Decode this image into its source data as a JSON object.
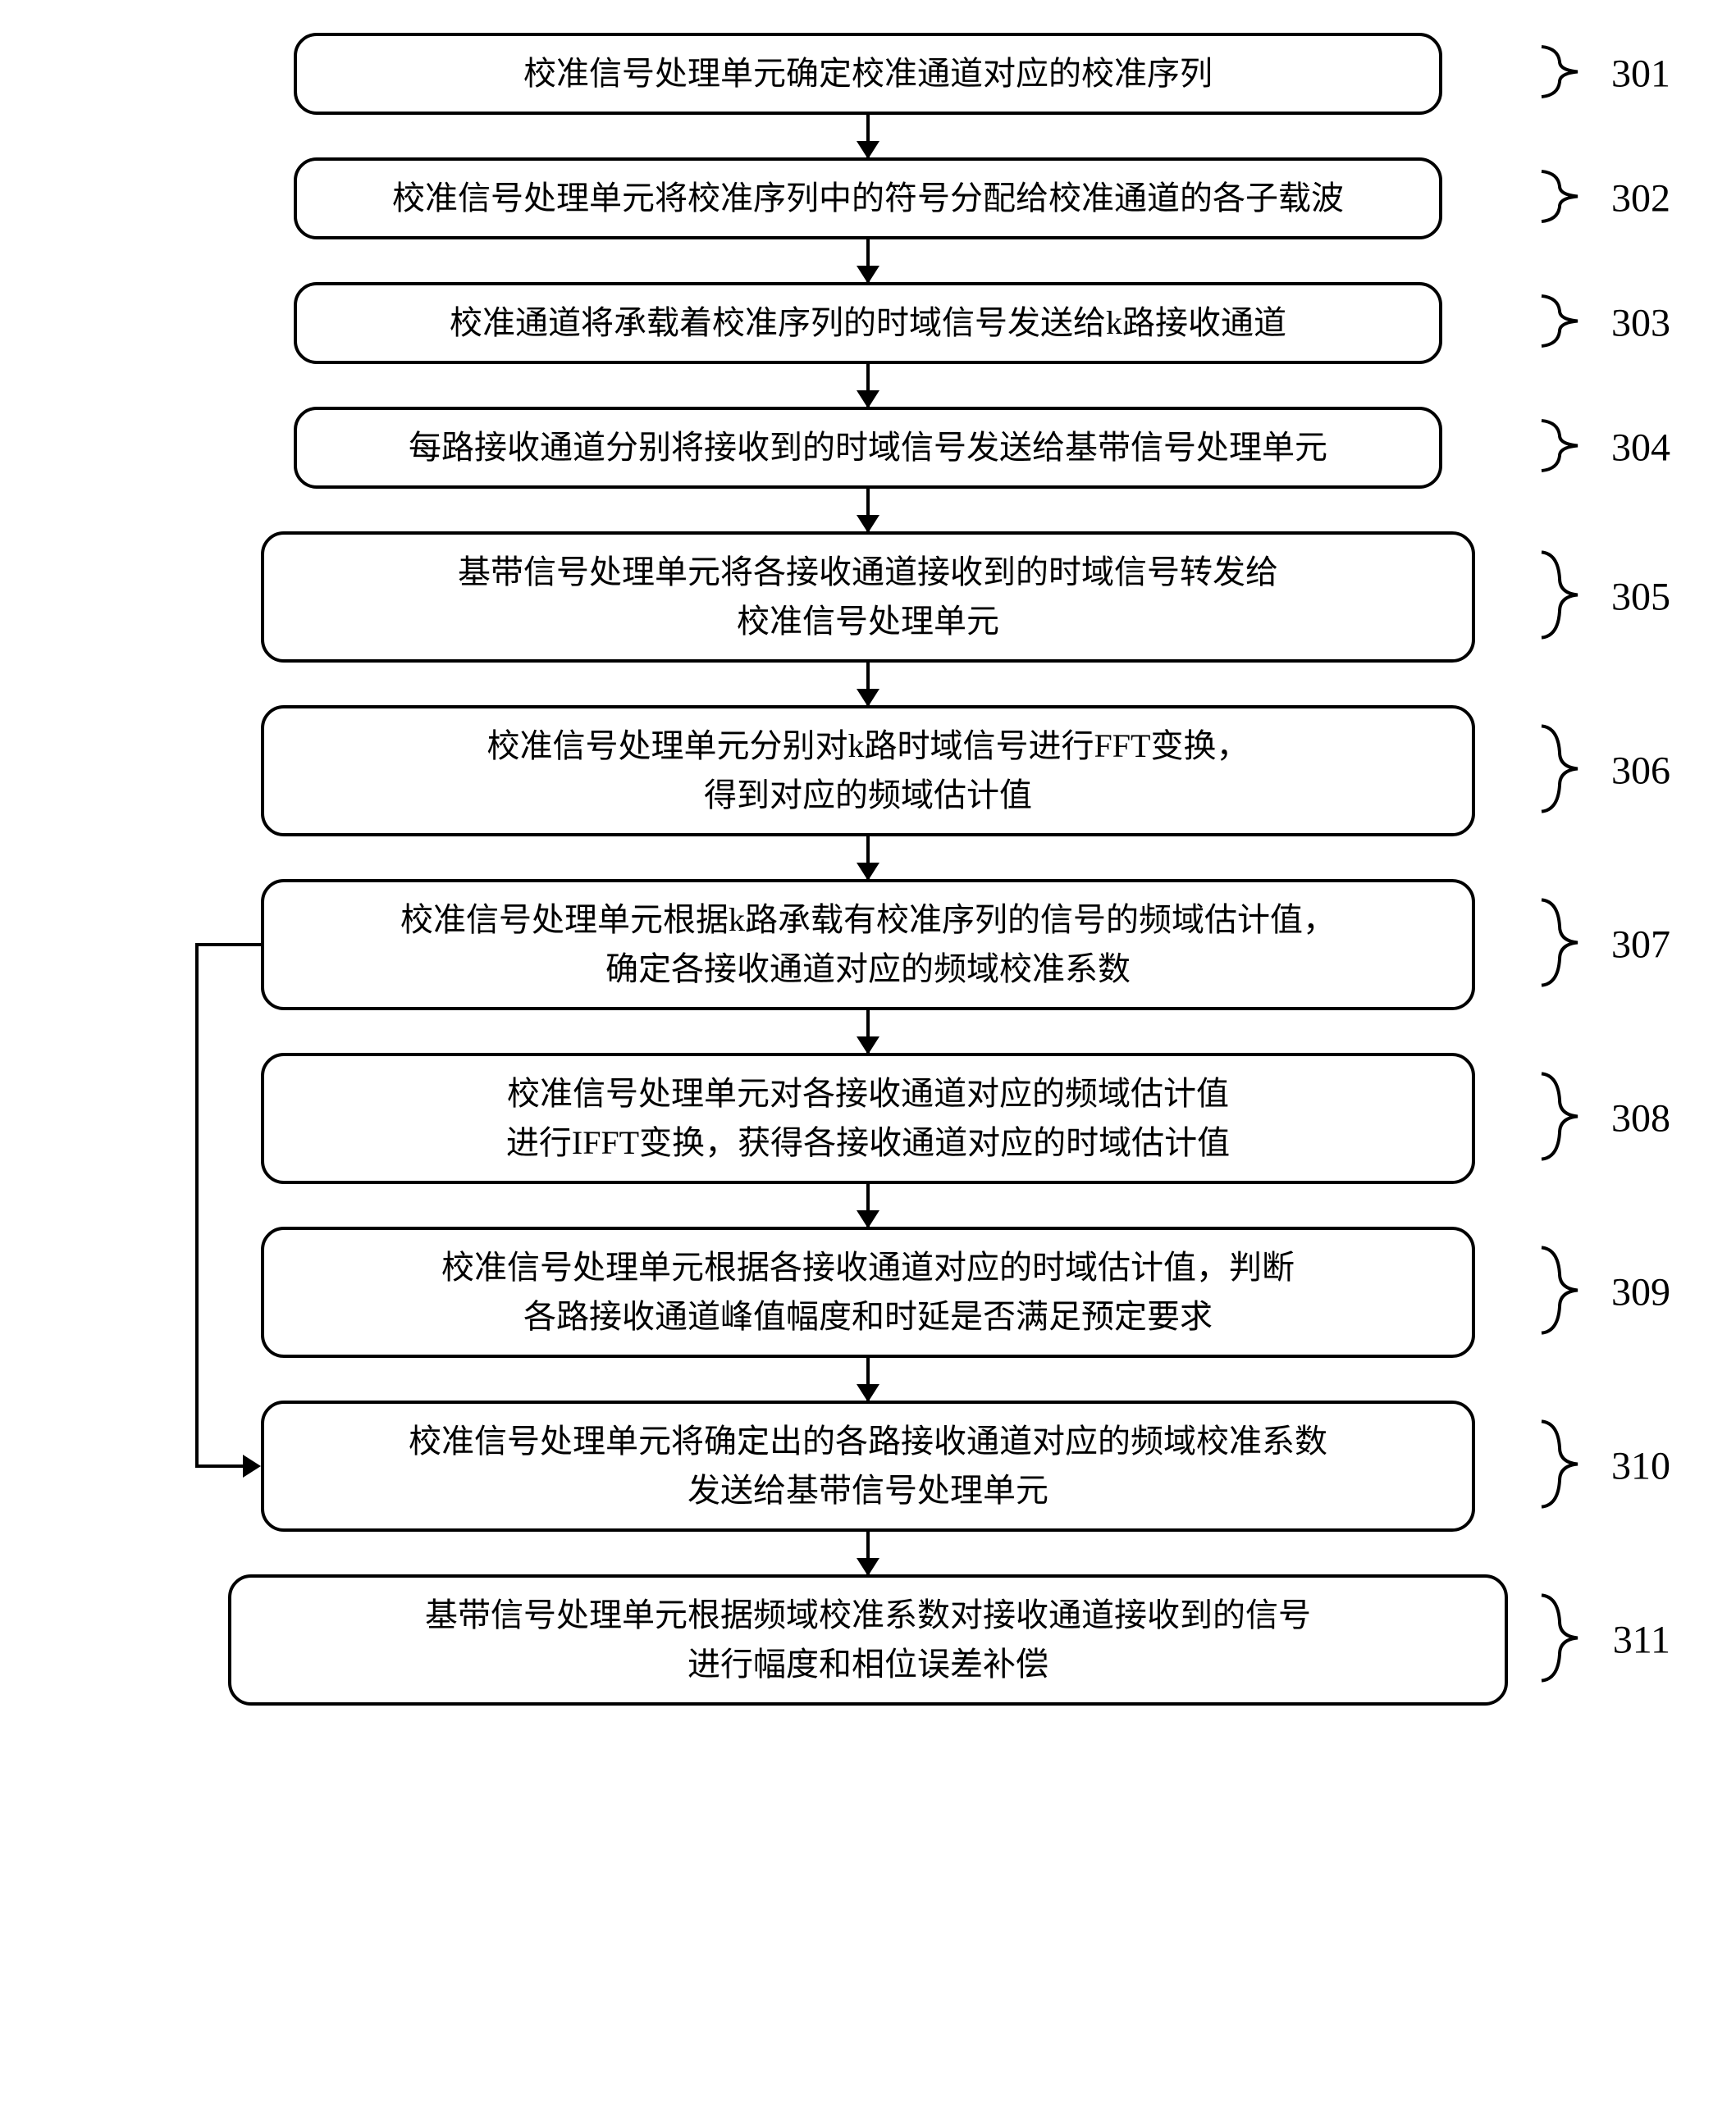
{
  "flowchart": {
    "type": "flowchart",
    "background_color": "#ffffff",
    "box_border_color": "#000000",
    "box_border_width": 4,
    "box_border_radius": 28,
    "box_fill": "#ffffff",
    "text_color": "#000000",
    "font_size": 40,
    "label_font_size": 48,
    "arrow_color": "#000000",
    "arrow_width": 4,
    "arrow_gap": 52,
    "box_width_single": 1400,
    "box_width_double": 1480,
    "box_width_last": 1560,
    "box_height_single": 96,
    "box_height_double": 156,
    "steps": [
      {
        "id": "301",
        "lines": [
          "校准信号处理单元确定校准通道对应的校准序列"
        ],
        "rows": 1
      },
      {
        "id": "302",
        "lines": [
          "校准信号处理单元将校准序列中的符号分配给校准通道的各子载波"
        ],
        "rows": 1
      },
      {
        "id": "303",
        "lines": [
          "校准通道将承载着校准序列的时域信号发送给k路接收通道"
        ],
        "rows": 1
      },
      {
        "id": "304",
        "lines": [
          "每路接收通道分别将接收到的时域信号发送给基带信号处理单元"
        ],
        "rows": 1
      },
      {
        "id": "305",
        "lines": [
          "基带信号处理单元将各接收通道接收到的时域信号转发给",
          "校准信号处理单元"
        ],
        "rows": 2
      },
      {
        "id": "306",
        "lines": [
          "校准信号处理单元分别对k路时域信号进行FFT变换，",
          "得到对应的频域估计值"
        ],
        "rows": 2
      },
      {
        "id": "307",
        "lines": [
          "校准信号处理单元根据k路承载有校准序列的信号的频域估计值，",
          "确定各接收通道对应的频域校准系数"
        ],
        "rows": 2
      },
      {
        "id": "308",
        "lines": [
          "校准信号处理单元对各接收通道对应的频域估计值",
          "进行IFFT变换，获得各接收通道对应的时域估计值"
        ],
        "rows": 2
      },
      {
        "id": "309",
        "lines": [
          "校准信号处理单元根据各接收通道对应的时域估计值，判断",
          "各路接收通道峰值幅度和时延是否满足预定要求"
        ],
        "rows": 2
      },
      {
        "id": "310",
        "lines": [
          "校准信号处理单元将确定出的各路接收通道对应的频域校准系数",
          "发送给基带信号处理单元"
        ],
        "rows": 2
      },
      {
        "id": "311",
        "lines": [
          "基带信号处理单元根据频域校准系数对接收通道接收到的信号",
          "进行幅度和相位误差补偿"
        ],
        "rows": 2
      }
    ],
    "loop": {
      "from_step": "307",
      "to_step": "310",
      "side": "left"
    }
  }
}
